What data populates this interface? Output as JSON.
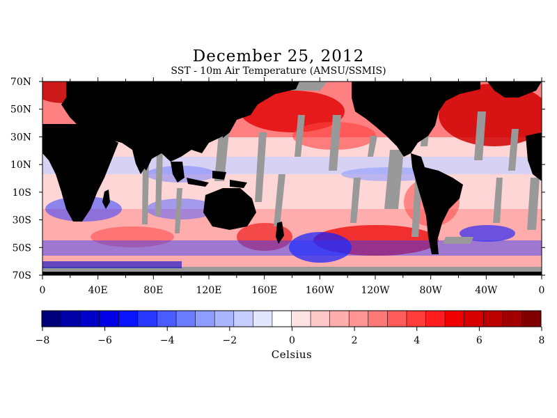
{
  "title": "December 25, 2012",
  "subtitle": "SST - 10m Air Temperature (AMSU/SSMIS)",
  "map": {
    "lon_labels": [
      "0",
      "40E",
      "80E",
      "120E",
      "160E",
      "160W",
      "120W",
      "80W",
      "40W",
      "0"
    ],
    "lat_labels": [
      "70N",
      "50N",
      "30N",
      "10N",
      "10S",
      "30S",
      "50S",
      "70S"
    ],
    "land_color": "#000000",
    "no_data_color": "#999999"
  },
  "colorbar": {
    "ticks": [
      "−8",
      "−6",
      "−4",
      "−2",
      "0",
      "2",
      "4",
      "6",
      "8"
    ],
    "units": "Celsius",
    "colors": [
      "#00007a",
      "#0000a6",
      "#0000c8",
      "#0000e6",
      "#0a14ff",
      "#2838ff",
      "#4a5cff",
      "#6c7cff",
      "#8e9cff",
      "#aab6ff",
      "#c6ceff",
      "#e2e6ff",
      "#ffffff",
      "#ffe2e2",
      "#ffc8c8",
      "#ffaeae",
      "#ff9494",
      "#ff7878",
      "#ff5c5c",
      "#ff3c3c",
      "#ff1e1e",
      "#f20000",
      "#d80000",
      "#bc0000",
      "#a00000",
      "#800000"
    ]
  }
}
